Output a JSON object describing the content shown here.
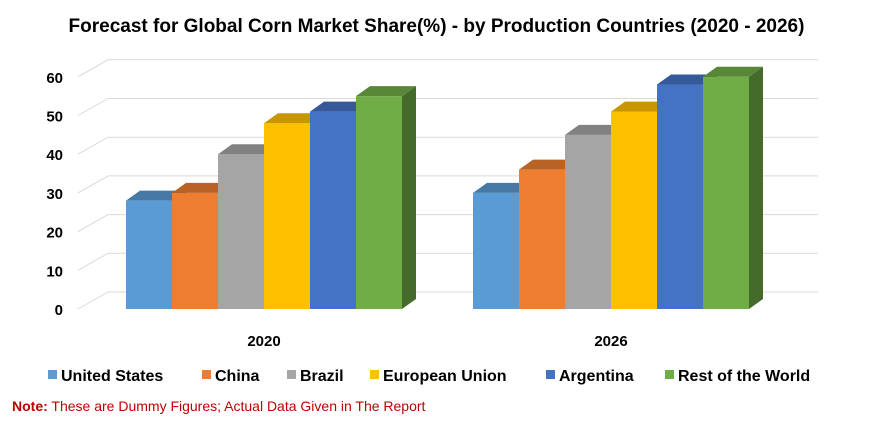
{
  "chart_data": {
    "type": "bar",
    "title": "Forecast for Global Corn Market Share(%) - by Production Countries (2020 - 2026)",
    "categories": [
      "2020",
      "2026"
    ],
    "series": [
      {
        "name": "United States",
        "values": [
          28,
          30
        ],
        "color": "#5b9bd5"
      },
      {
        "name": "China",
        "values": [
          30,
          36
        ],
        "color": "#ed7d31"
      },
      {
        "name": "Brazil",
        "values": [
          40,
          45
        ],
        "color": "#a5a5a5"
      },
      {
        "name": "European Union",
        "values": [
          48,
          51
        ],
        "color": "#ffc000"
      },
      {
        "name": "Argentina",
        "values": [
          51,
          58
        ],
        "color": "#4472c4"
      },
      {
        "name": "Rest of the World",
        "values": [
          55,
          60
        ],
        "color": "#70ad47"
      }
    ],
    "ylim": [
      0,
      60
    ],
    "yticks": [
      "0",
      "10",
      "20",
      "30",
      "40",
      "50",
      "60"
    ],
    "grid": true,
    "legend": "bottom"
  },
  "note": {
    "label": "Note:",
    "text": " These are Dummy Figures; Actual Data Given in The Report"
  }
}
